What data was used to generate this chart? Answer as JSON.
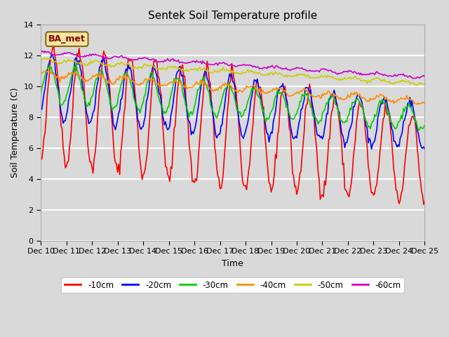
{
  "title": "Sentek Soil Temperature profile",
  "xlabel": "Time",
  "ylabel": "Soil Temperature (C)",
  "ylim": [
    0,
    14
  ],
  "yticks": [
    0,
    2,
    4,
    6,
    8,
    10,
    12,
    14
  ],
  "legend_label": "BA_met",
  "legend_box_color": "#f5e6a0",
  "legend_box_edge": "#8B6914",
  "colors": {
    "-10cm": "#ff0000",
    "-20cm": "#0000ff",
    "-30cm": "#00cc00",
    "-40cm": "#ff8c00",
    "-50cm": "#cccc00",
    "-60cm": "#cc00cc"
  },
  "x_tick_labels": [
    "Dec 10",
    "Dec 11",
    "Dec 12",
    "Dec 13",
    "Dec 14",
    "Dec 15",
    "Dec 16",
    "Dec 17",
    "Dec 18",
    "Dec 19",
    "Dec 20",
    "Dec 21",
    "Dec 22",
    "Dec 23",
    "Dec 24",
    "Dec 25"
  ],
  "background_color": "#d9d9d9",
  "plot_bg_color": "#d9d9d9",
  "grid_color": "#ffffff",
  "figsize": [
    6.4,
    4.8
  ],
  "dpi": 100
}
